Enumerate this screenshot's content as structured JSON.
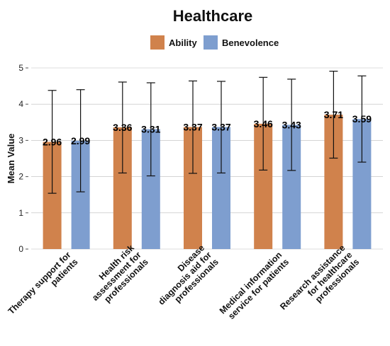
{
  "colors": {
    "ability": "#d0824c",
    "benevolence": "#7e9ecf",
    "grid": "#bbbbbb",
    "errorbar": "#111111"
  },
  "chart_data": {
    "type": "bar",
    "title": "Healthcare",
    "xlabel": "",
    "ylabel": "Mean Value",
    "ylim": [
      0,
      5
    ],
    "yticks": [
      "0",
      "1",
      "2",
      "3",
      "4",
      "5"
    ],
    "grid": true,
    "legend_position": "top",
    "categories": [
      [
        "Therapy support for",
        "patients"
      ],
      [
        "Health risk",
        "assessment for",
        "professionals"
      ],
      [
        "Disease",
        "diagnosis aid for",
        "professionals"
      ],
      [
        "Medical information",
        "service for patients"
      ],
      [
        "Research assistance",
        "for healthcare",
        "professionals"
      ]
    ],
    "series": [
      {
        "name": "Ability",
        "values": [
          2.96,
          3.36,
          3.37,
          3.46,
          3.71
        ],
        "labels": [
          "2.96",
          "3.36",
          "3.37",
          "3.46",
          "3.71"
        ],
        "error_low": [
          1.54,
          2.1,
          2.09,
          2.18,
          2.51
        ],
        "error_high": [
          4.38,
          4.61,
          4.64,
          4.74,
          4.91
        ]
      },
      {
        "name": "Benevolence",
        "values": [
          2.99,
          3.31,
          3.37,
          3.43,
          3.59
        ],
        "labels": [
          "2.99",
          "3.31",
          "3.37",
          "3.43",
          "3.59"
        ],
        "error_low": [
          1.58,
          2.02,
          2.1,
          2.17,
          2.4
        ],
        "error_high": [
          4.4,
          4.59,
          4.63,
          4.69,
          4.78
        ]
      }
    ]
  }
}
